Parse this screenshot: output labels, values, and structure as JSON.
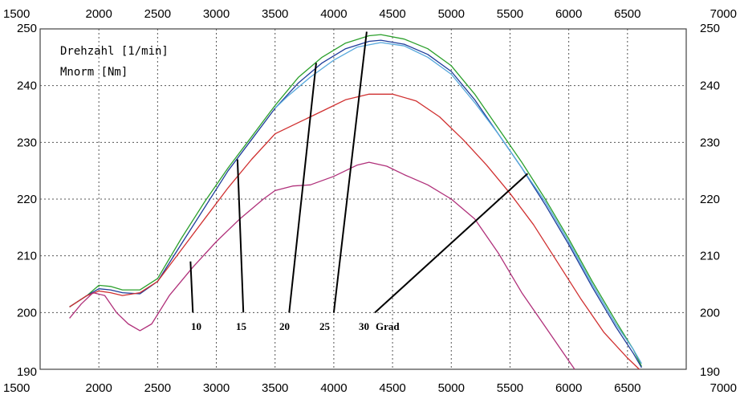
{
  "chart_data": {
    "type": "line",
    "legend": [
      {
        "label": "Drehzahl [1/min]"
      },
      {
        "label": "Mnorm [Nm]"
      }
    ],
    "x_ticks": [
      "1500",
      "2000",
      "2500",
      "3000",
      "3500",
      "4000",
      "4500",
      "5000",
      "5500",
      "6000",
      "6500",
      "7000"
    ],
    "y_ticks": [
      "190",
      "200",
      "210",
      "220",
      "230",
      "240",
      "250"
    ],
    "xlim": [
      1500,
      7000
    ],
    "ylim": [
      190,
      250
    ],
    "grid": true,
    "series": [
      {
        "color": "#2ca02c",
        "points": [
          [
            1750,
            201
          ],
          [
            1900,
            203
          ],
          [
            2000,
            204.8
          ],
          [
            2100,
            204.6
          ],
          [
            2200,
            204
          ],
          [
            2350,
            204
          ],
          [
            2500,
            206
          ],
          [
            2700,
            213
          ],
          [
            2900,
            219.5
          ],
          [
            3100,
            225.5
          ],
          [
            3300,
            231
          ],
          [
            3500,
            236.5
          ],
          [
            3700,
            241.5
          ],
          [
            3900,
            245
          ],
          [
            4100,
            247.5
          ],
          [
            4300,
            248.8
          ],
          [
            4400,
            249
          ],
          [
            4600,
            248.2
          ],
          [
            4800,
            246.5
          ],
          [
            5000,
            243.5
          ],
          [
            5200,
            238.5
          ],
          [
            5400,
            232.5
          ],
          [
            5600,
            226.5
          ],
          [
            5800,
            220
          ],
          [
            6000,
            213
          ],
          [
            6200,
            205.5
          ],
          [
            6400,
            198.5
          ],
          [
            6550,
            193.5
          ],
          [
            6620,
            190.5
          ]
        ]
      },
      {
        "color": "#1f3d9a",
        "points": [
          [
            1750,
            201
          ],
          [
            1900,
            203
          ],
          [
            2000,
            204.2
          ],
          [
            2100,
            204
          ],
          [
            2200,
            203.5
          ],
          [
            2350,
            203.3
          ],
          [
            2500,
            205.5
          ],
          [
            2700,
            212
          ],
          [
            2900,
            218.5
          ],
          [
            3100,
            225
          ],
          [
            3300,
            230.5
          ],
          [
            3500,
            236
          ],
          [
            3700,
            240.5
          ],
          [
            3900,
            244
          ],
          [
            4100,
            246.5
          ],
          [
            4300,
            247.8
          ],
          [
            4400,
            248
          ],
          [
            4600,
            247.3
          ],
          [
            4800,
            245.5
          ],
          [
            5000,
            242.5
          ],
          [
            5200,
            237.5
          ],
          [
            5400,
            231.5
          ],
          [
            5600,
            225.5
          ],
          [
            5800,
            219
          ],
          [
            6000,
            212
          ],
          [
            6200,
            204.5
          ],
          [
            6400,
            197.5
          ],
          [
            6550,
            192.8
          ],
          [
            6620,
            190.3
          ]
        ]
      },
      {
        "color": "#56a8dc",
        "points": [
          [
            3500,
            236
          ],
          [
            3600,
            238
          ],
          [
            3800,
            241.5
          ],
          [
            4000,
            244.5
          ],
          [
            4200,
            246.8
          ],
          [
            4400,
            247.6
          ],
          [
            4600,
            247
          ],
          [
            4800,
            245
          ],
          [
            5000,
            242
          ],
          [
            5200,
            237
          ],
          [
            5400,
            231.5
          ],
          [
            5600,
            225.5
          ],
          [
            5800,
            219.5
          ],
          [
            6000,
            212.5
          ],
          [
            6200,
            205
          ],
          [
            6400,
            198
          ],
          [
            6550,
            193.5
          ],
          [
            6620,
            191
          ]
        ]
      },
      {
        "color": "#d03030",
        "points": [
          [
            1750,
            201
          ],
          [
            1900,
            203
          ],
          [
            2000,
            203.8
          ],
          [
            2100,
            203.5
          ],
          [
            2200,
            203
          ],
          [
            2350,
            203.5
          ],
          [
            2500,
            205.5
          ],
          [
            2700,
            211
          ],
          [
            2900,
            216.5
          ],
          [
            3100,
            222
          ],
          [
            3300,
            227
          ],
          [
            3500,
            231.5
          ],
          [
            3700,
            233.5
          ],
          [
            3900,
            235.5
          ],
          [
            4100,
            237.5
          ],
          [
            4300,
            238.5
          ],
          [
            4500,
            238.5
          ],
          [
            4700,
            237.3
          ],
          [
            4900,
            234.5
          ],
          [
            5100,
            230.5
          ],
          [
            5300,
            226
          ],
          [
            5500,
            221
          ],
          [
            5700,
            215.5
          ],
          [
            5900,
            209
          ],
          [
            6100,
            202.5
          ],
          [
            6300,
            196.5
          ],
          [
            6500,
            192
          ],
          [
            6600,
            190
          ]
        ]
      },
      {
        "color": "#b0307a",
        "points": [
          [
            1750,
            199
          ],
          [
            1850,
            201.5
          ],
          [
            1950,
            203.5
          ],
          [
            2050,
            203
          ],
          [
            2150,
            200
          ],
          [
            2250,
            198
          ],
          [
            2350,
            196.8
          ],
          [
            2450,
            198
          ],
          [
            2600,
            203
          ],
          [
            2800,
            208
          ],
          [
            3000,
            212.5
          ],
          [
            3200,
            216.5
          ],
          [
            3400,
            220
          ],
          [
            3500,
            221.5
          ],
          [
            3650,
            222.3
          ],
          [
            3800,
            222.5
          ],
          [
            4000,
            224
          ],
          [
            4200,
            226
          ],
          [
            4300,
            226.5
          ],
          [
            4450,
            225.8
          ],
          [
            4600,
            224.3
          ],
          [
            4800,
            222.5
          ],
          [
            5000,
            220
          ],
          [
            5200,
            216.5
          ],
          [
            5400,
            210.5
          ],
          [
            5600,
            203.5
          ],
          [
            5800,
            197.5
          ],
          [
            6000,
            191.5
          ],
          [
            6050,
            190
          ]
        ]
      }
    ],
    "annotation_labels": [
      "10",
      "15",
      "20",
      "25",
      "30",
      "Grad"
    ],
    "annotation_lines": [
      {
        "from": [
          2780,
          209
        ],
        "to": [
          2800,
          200
        ]
      },
      {
        "from": [
          3180,
          227
        ],
        "to": [
          3230,
          200
        ]
      },
      {
        "from": [
          3850,
          244
        ],
        "to": [
          3620,
          200
        ]
      },
      {
        "from": [
          4280,
          249.5
        ],
        "to": [
          4000,
          200
        ]
      },
      {
        "from": [
          5650,
          224.5
        ],
        "to": [
          4350,
          200
        ]
      }
    ]
  }
}
